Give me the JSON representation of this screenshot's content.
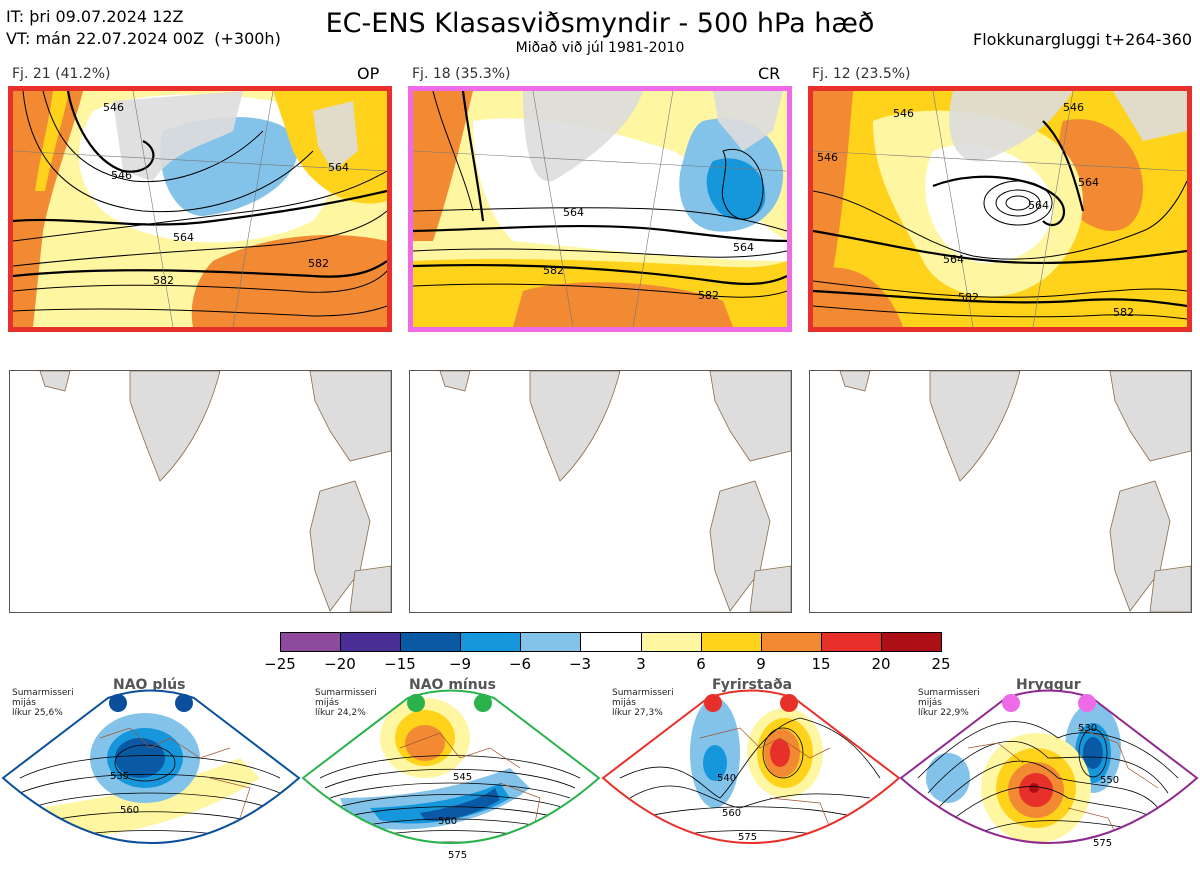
{
  "header": {
    "it_line": "IT: þri 09.07.2024 12Z",
    "vt_line": "VT: mán 22.07.2024 00Z  (+300h)",
    "title": "EC-ENS Klasasviðsmyndir - 500 hPa hæð",
    "subtitle": "Miðað við júl 1981-2010",
    "window": "Flokkunargluggi t+264-360"
  },
  "clusters": [
    {
      "label": "Fj. 21 (41.2%)",
      "tag": "OP",
      "frame_color": "#e8302a",
      "contours": [
        "546",
        "546",
        "564",
        "564",
        "582",
        "582"
      ]
    },
    {
      "label": "Fj. 18 (35.3%)",
      "tag": "CR",
      "frame_color": "#ee6be8",
      "contours": [
        "564",
        "564",
        "582",
        "582"
      ]
    },
    {
      "label": "Fj. 12 (23.5%)",
      "tag": "",
      "frame_color": "#e8302a",
      "contours": [
        "546",
        "546",
        "564",
        "564",
        "564",
        "582",
        "582",
        "546"
      ]
    }
  ],
  "colorbar": {
    "colors": [
      "#8e4a9c",
      "#4b2f97",
      "#0a59a4",
      "#1797db",
      "#83c3ea",
      "#ffffff",
      "#fff6a2",
      "#ffd21c",
      "#f28a34",
      "#e8302a",
      "#ad0f17"
    ],
    "ticks": [
      "−25",
      "−20",
      "−15",
      "−9",
      "−6",
      "−3",
      "3",
      "6",
      "9",
      "15",
      "20",
      "25"
    ]
  },
  "regimes": [
    {
      "name": "NAO plús",
      "desc": "Sumarmisseri\nmijás\nlíkur 25,6%",
      "color": "#0b4f9c",
      "labels": [
        "535",
        "560"
      ]
    },
    {
      "name": "NAO mínus",
      "desc": "Sumarmisseri\nmijás\nlíkur 24,2%",
      "color": "#2bb24c",
      "labels": [
        "545",
        "560",
        "575"
      ]
    },
    {
      "name": "Fyrirstaða",
      "desc": "Sumarmisseri\nmijás\nlíkur 27,3%",
      "color": "#e8302a",
      "labels": [
        "540",
        "560",
        "575"
      ]
    },
    {
      "name": "Hryggur",
      "desc": "Sumarmisseri\nmijás\nlíkur 22,9%",
      "color": "#ee6be8",
      "labels": [
        "530",
        "550",
        "575"
      ]
    }
  ]
}
